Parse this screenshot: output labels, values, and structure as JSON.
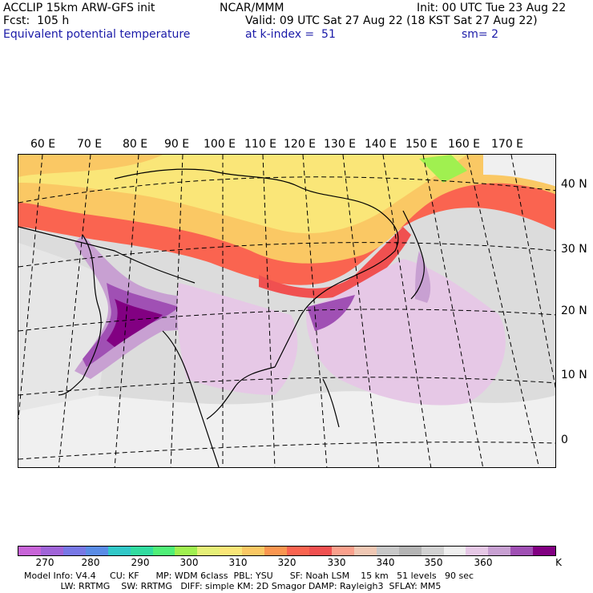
{
  "header": {
    "left_line1": "ACCLIP 15km ARW-GFS init",
    "left_line2": "Fcst:  105 h",
    "left_line3": "Equivalent potential temperature",
    "center_line1": "NCAR/MMM",
    "right_line1": "Init: 00 UTC Tue 23 Aug 22",
    "right_line2": "Valid: 09 UTC Sat 27 Aug 22 (18 KST Sat 27 Aug 22)",
    "k_index": "at k-index =  51",
    "smooth": "sm= 2"
  },
  "map": {
    "lon_labels": [
      "60 E",
      "70 E",
      "80 E",
      "90 E",
      "100 E",
      "110 E",
      "120 E",
      "130 E",
      "140 E",
      "150 E",
      "160 E",
      "170 E"
    ],
    "lat_labels": [
      "40 N",
      "30 N",
      "20 N",
      "10 N",
      "0"
    ]
  },
  "colorbar": {
    "colors": [
      "#c864d8",
      "#a064d8",
      "#7878e6",
      "#5a8ce6",
      "#32c8c8",
      "#32dca0",
      "#50f078",
      "#a0f050",
      "#e6f078",
      "#fae678",
      "#fac864",
      "#fa9650",
      "#fa6450",
      "#f05050",
      "#faa08c",
      "#f0c8b4",
      "#c8c8c8",
      "#b4b4b4",
      "#d2d2d2",
      "#f0f0f0",
      "#e6c8e6",
      "#c8a0d2",
      "#a050b4",
      "#820082"
    ],
    "ticks": [
      "270",
      "280",
      "290",
      "300",
      "310",
      "320",
      "330",
      "340",
      "350",
      "360"
    ],
    "unit": "K"
  },
  "footer": {
    "line1": "Model Info: V4.4     CU: KF      MP: WDM 6class  PBL: YSU      SF: Noah LSM    15 km   51 levels   90 sec",
    "line2": "             LW: RRTMG    SW: RRTMG   DIFF: simple KM: 2D Smagor DAMP: Rayleigh3  SFLAY: MM5"
  }
}
